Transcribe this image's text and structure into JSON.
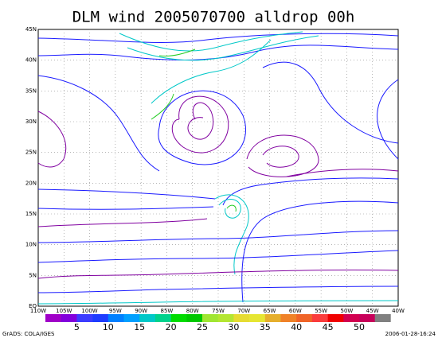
{
  "header": {
    "title": "DLM wind 2005070700 alldrop 00h"
  },
  "axes": {
    "longitude": [
      "110W",
      "105W",
      "100W",
      "95W",
      "90W",
      "85W",
      "80W",
      "75W",
      "70W",
      "65W",
      "60W",
      "55W",
      "50W",
      "45W",
      "40W"
    ],
    "latitude": [
      "EQ",
      "5N",
      "10N",
      "15N",
      "20N",
      "25N",
      "30N",
      "35N",
      "40N",
      "45N"
    ]
  },
  "colorbar": {
    "labels": [
      "5",
      "10",
      "15",
      "20",
      "25",
      "30",
      "35",
      "40",
      "45",
      "50"
    ]
  },
  "footer": {
    "left": "GrADS: COLA/IGES",
    "right": "2006-01-28-16:24"
  }
}
